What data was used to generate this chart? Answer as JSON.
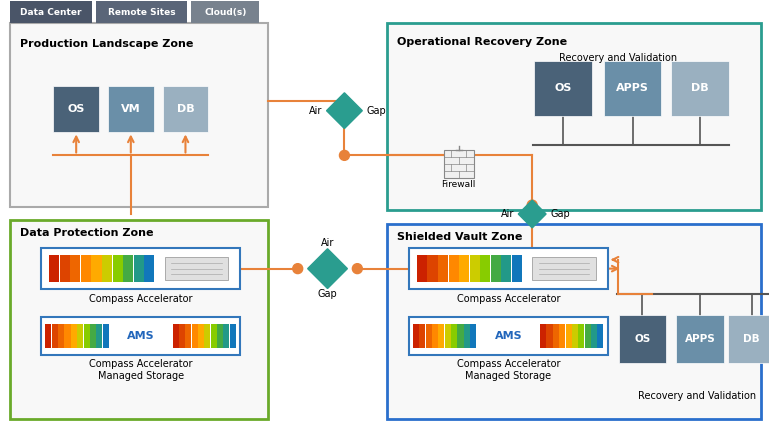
{
  "tab_labels": [
    "Data Center",
    "Remote Sites",
    "Cloud(s)"
  ],
  "tab_colors": [
    "#4a5568",
    "#5a6578",
    "#6b7585"
  ],
  "orange": "#e8823a",
  "teal": "#2a9d8f",
  "gray_box": "#4a6278",
  "mid_box": "#6a8fa8",
  "light_box": "#9ab0c0",
  "dark_line": "#333333",
  "background": "#ffffff",
  "zone_bg": "#f9f9f9",
  "prod_border": "#aaaaaa",
  "op_border": "#2a9d8f",
  "dp_border": "#6aaa2a",
  "sv_border": "#2a6fcc"
}
